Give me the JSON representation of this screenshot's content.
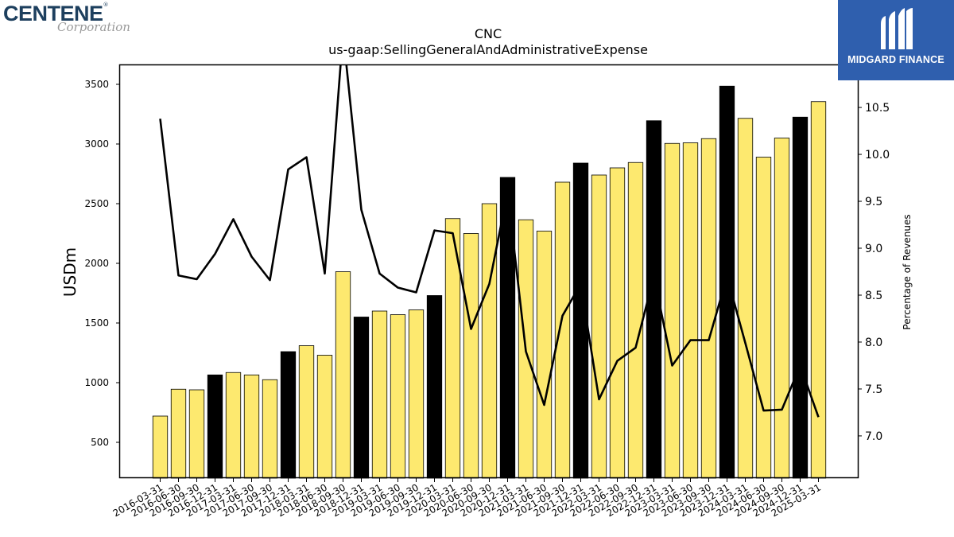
{
  "logos": {
    "left_brand": "CENTENE",
    "left_reg": "®",
    "left_sub": "Corporation",
    "right_text": "MIDGARD FINANCE",
    "right_bg": "#2f5fae"
  },
  "chart_data": {
    "type": "bar",
    "title": "CNC",
    "subtitle": "us-gaap:SellingGeneralAndAdministrativeExpense",
    "ylabel": "USDm",
    "y2label": "Percentage of Revenues",
    "ylim": [
      200,
      3660
    ],
    "y2lim": [
      6.55,
      10.95
    ],
    "yticks": [
      500,
      1000,
      1500,
      2000,
      2500,
      3000,
      3500
    ],
    "y2ticks": [
      7.0,
      7.5,
      8.0,
      8.5,
      9.0,
      9.5,
      10.0,
      10.5
    ],
    "colors": {
      "quarter_bar": "#fde96f",
      "year_end_bar": "#000000",
      "line": "#000000"
    },
    "categories": [
      "2016-03-31",
      "2016-06-30",
      "2016-09-30",
      "2016-12-31",
      "2017-03-31",
      "2017-06-30",
      "2017-09-30",
      "2017-12-31",
      "2018-03-31",
      "2018-06-30",
      "2018-09-30",
      "2018-12-31",
      "2019-03-31",
      "2019-06-30",
      "2019-09-30",
      "2019-12-31",
      "2020-03-31",
      "2020-06-30",
      "2020-09-30",
      "2020-12-31",
      "2021-03-31",
      "2021-06-30",
      "2021-09-30",
      "2021-12-31",
      "2022-03-31",
      "2022-06-30",
      "2022-09-30",
      "2022-12-31",
      "2023-03-31",
      "2023-06-30",
      "2023-09-30",
      "2023-12-31",
      "2024-03-31",
      "2024-06-30",
      "2024-09-30",
      "2024-12-31",
      "2025-03-31"
    ],
    "series": [
      {
        "kind": "bar",
        "values": [
          720,
          945,
          940,
          1065,
          1085,
          1065,
          1025,
          1260,
          1310,
          1230,
          1930,
          1550,
          1600,
          1570,
          1610,
          1730,
          2375,
          2250,
          2500,
          2720,
          2365,
          2270,
          2680,
          2840,
          2740,
          2800,
          2845,
          3195,
          3005,
          3010,
          3045,
          3485,
          3215,
          2890,
          3050,
          3225,
          3355
        ],
        "year_end": [
          false,
          false,
          false,
          true,
          false,
          false,
          false,
          true,
          false,
          false,
          false,
          true,
          false,
          false,
          false,
          true,
          false,
          false,
          false,
          true,
          false,
          false,
          false,
          true,
          false,
          false,
          false,
          true,
          false,
          false,
          false,
          true,
          false,
          false,
          false,
          true,
          false
        ]
      },
      {
        "kind": "line",
        "axis": "right",
        "values": [
          10.38,
          8.71,
          8.67,
          8.94,
          9.31,
          8.91,
          8.66,
          9.84,
          9.97,
          8.73,
          11.3,
          9.41,
          8.73,
          8.58,
          8.53,
          9.19,
          9.16,
          8.14,
          8.62,
          9.6,
          7.9,
          7.33,
          8.28,
          8.62,
          7.39,
          7.8,
          7.94,
          8.7,
          7.75,
          8.02,
          8.02,
          8.7,
          7.99,
          7.27,
          7.28,
          7.75,
          7.2
        ]
      }
    ]
  }
}
